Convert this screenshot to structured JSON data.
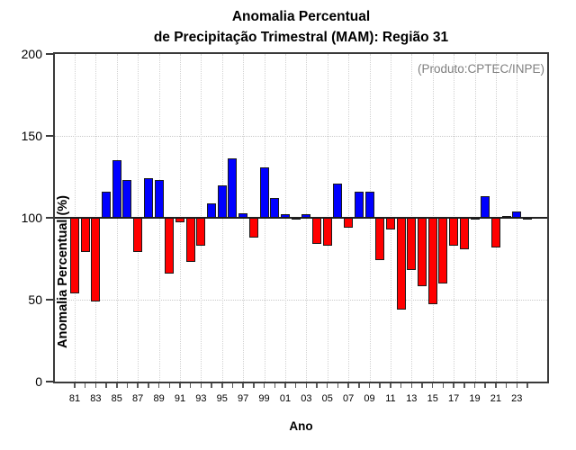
{
  "title": {
    "line1": "Anomalia Percentual",
    "line2": "de Precipitação Trimestral (MAM): Região 31"
  },
  "annotation": "(Produto:CPTEC/INPE)",
  "chart_data": {
    "type": "bar",
    "title": "Anomalia Percentual de Precipitação Trimestral (MAM): Região 31",
    "xlabel": "Ano",
    "ylabel": "Anomalia Percentual (%)",
    "ylim": [
      0,
      200
    ],
    "yticks": [
      0,
      50,
      100,
      150,
      200
    ],
    "baseline": 100,
    "grid": {
      "horizontal_dotted_at": [
        50,
        150
      ],
      "vertical_dotted_at_odd_years": true
    },
    "legend_position": "none",
    "colors": {
      "above_baseline": "#0000FF",
      "below_baseline": "#FF0000",
      "bar_border": "#1A1A1A",
      "baseline_line": "#222222",
      "gridline": "#C9C9C9",
      "frame": "#3A3A3A",
      "annotation_text": "#7F7F7F"
    },
    "categories": [
      "81",
      "82",
      "83",
      "84",
      "85",
      "86",
      "87",
      "88",
      "89",
      "90",
      "91",
      "92",
      "93",
      "94",
      "95",
      "96",
      "97",
      "98",
      "99",
      "00",
      "01",
      "02",
      "03",
      "04",
      "05",
      "06",
      "07",
      "08",
      "09",
      "10",
      "11",
      "12",
      "13",
      "14",
      "15",
      "16",
      "17",
      "18",
      "19",
      "20",
      "21",
      "22",
      "23",
      "24"
    ],
    "x_tick_labels_shown": [
      "81",
      "83",
      "85",
      "87",
      "89",
      "91",
      "93",
      "95",
      "97",
      "99",
      "01",
      "03",
      "05",
      "07",
      "09",
      "11",
      "13",
      "15",
      "17",
      "19",
      "21",
      "23"
    ],
    "values": [
      54,
      79,
      49,
      116,
      135,
      123,
      79,
      124,
      123,
      66,
      97,
      73,
      83,
      109,
      120,
      136,
      103,
      88,
      131,
      112,
      102,
      99,
      102,
      84,
      83,
      121,
      94,
      116,
      116,
      74,
      93,
      44,
      68,
      58,
      47,
      60,
      83,
      81,
      99,
      113,
      82,
      101,
      104,
      99.5
    ]
  }
}
